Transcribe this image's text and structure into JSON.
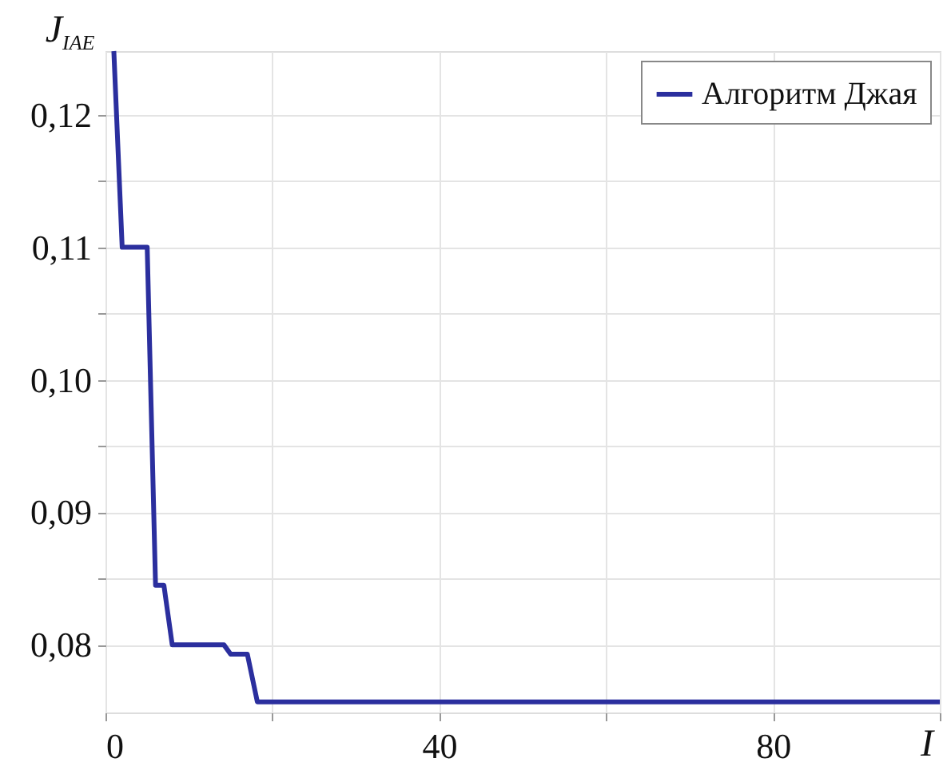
{
  "chart_data": {
    "type": "line",
    "xlabel": "I",
    "ylabel": "J$_{IAE}$",
    "x": [
      1,
      2,
      5,
      6,
      7,
      8,
      14.2,
      15,
      17,
      18.2,
      100
    ],
    "series": [
      {
        "name": "Алгоритм Джая",
        "color": "#2b2f9e",
        "values": [
          0.1248,
          0.11,
          0.11,
          0.0845,
          0.0845,
          0.08,
          0.08,
          0.0793,
          0.0793,
          0.0757,
          0.0757
        ]
      }
    ],
    "xlim": [
      0,
      100
    ],
    "xticks": [
      {
        "value": 0,
        "label": "0"
      },
      {
        "value": 20,
        "label": null
      },
      {
        "value": 40,
        "label": "40"
      },
      {
        "value": 60,
        "label": null
      },
      {
        "value": 80,
        "label": "80"
      },
      {
        "value": 100,
        "label": null
      }
    ],
    "ylim": [
      0.0749,
      0.1248
    ],
    "yticks": [
      {
        "value": 0.08,
        "label": "0,08"
      },
      {
        "value": 0.085,
        "label": null
      },
      {
        "value": 0.09,
        "label": "0,09"
      },
      {
        "value": 0.095,
        "label": null
      },
      {
        "value": 0.1,
        "label": "0,10"
      },
      {
        "value": 0.105,
        "label": null
      },
      {
        "value": 0.11,
        "label": "0,11"
      },
      {
        "value": 0.115,
        "label": null
      },
      {
        "value": 0.12,
        "label": "0,12"
      }
    ],
    "grid": true,
    "legend": "top right",
    "marker": "none",
    "line_style": "solid"
  }
}
